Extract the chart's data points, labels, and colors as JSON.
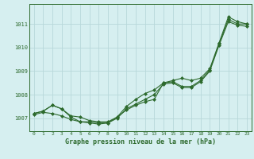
{
  "x": [
    0,
    1,
    2,
    3,
    4,
    5,
    6,
    7,
    8,
    9,
    10,
    11,
    12,
    13,
    14,
    15,
    16,
    17,
    18,
    19,
    20,
    21,
    22,
    23
  ],
  "line1": [
    1007.2,
    1007.3,
    1007.55,
    1007.4,
    1007.1,
    1007.05,
    1006.9,
    1006.85,
    1006.85,
    1007.05,
    1007.35,
    1007.55,
    1007.7,
    1007.8,
    1008.5,
    1008.6,
    1008.7,
    1008.6,
    1008.7,
    1009.1,
    1010.2,
    1011.3,
    1011.1,
    1011.0
  ],
  "line2": [
    1007.2,
    1007.3,
    1007.55,
    1007.4,
    1007.05,
    1006.85,
    1006.85,
    1006.8,
    1006.8,
    1007.05,
    1007.5,
    1007.8,
    1008.05,
    1008.2,
    1008.5,
    1008.55,
    1008.35,
    1008.35,
    1008.6,
    1009.05,
    1010.15,
    1011.2,
    1011.0,
    1011.0
  ],
  "line3": [
    1007.15,
    1007.25,
    1007.2,
    1007.1,
    1006.95,
    1006.85,
    1006.8,
    1006.75,
    1006.8,
    1007.0,
    1007.4,
    1007.6,
    1007.8,
    1008.0,
    1008.45,
    1008.5,
    1008.3,
    1008.3,
    1008.55,
    1009.0,
    1010.1,
    1011.1,
    1010.95,
    1010.9
  ],
  "line_color": "#2d6a2d",
  "bg_color": "#d6eff0",
  "grid_color": "#b8d8da",
  "xlabel": "Graphe pression niveau de la mer (hPa)",
  "ylim_min": 1006.45,
  "ylim_max": 1011.85,
  "xlim_min": -0.5,
  "xlim_max": 23.5,
  "yticks": [
    1007,
    1008,
    1009,
    1010,
    1011
  ],
  "xticks": [
    0,
    1,
    2,
    3,
    4,
    5,
    6,
    7,
    8,
    9,
    10,
    11,
    12,
    13,
    14,
    15,
    16,
    17,
    18,
    19,
    20,
    21,
    22,
    23
  ]
}
